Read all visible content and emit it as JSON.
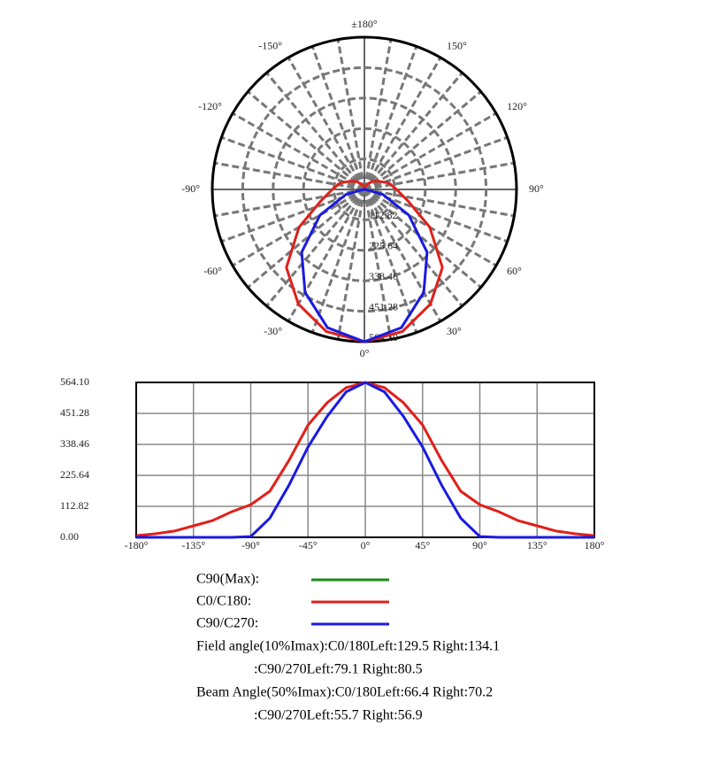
{
  "chart_data": [
    {
      "type": "polar",
      "theta": [
        -180,
        -165,
        -150,
        -135,
        -120,
        -105,
        -90,
        -75,
        -60,
        -45,
        -30,
        -15,
        0,
        15,
        30,
        45,
        60,
        75,
        90,
        105,
        120,
        135,
        150,
        165,
        180
      ],
      "series": [
        {
          "color": "#e0201a",
          "values": [
            6,
            13,
            23,
            42,
            61,
            93,
            119,
            168,
            280,
            409,
            490,
            545,
            564,
            545,
            490,
            409,
            280,
            168,
            119,
            93,
            61,
            42,
            23,
            13,
            6
          ]
        },
        {
          "color": "#1a1ae0",
          "values": [
            0,
            0,
            0,
            0,
            0,
            0,
            3,
            70,
            190,
            329,
            440,
            530,
            564,
            530,
            440,
            329,
            190,
            70,
            3,
            0,
            0,
            0,
            0,
            0,
            0
          ]
        }
      ],
      "rlim": [
        0,
        564.1
      ],
      "rticks": [
        112.82,
        225.64,
        338.46,
        451.28,
        {
          "value": 564.1,
          "label": "564.10"
        }
      ],
      "thetaticks": [
        {
          "value": 180,
          "label": "±180°"
        },
        {
          "value": 150,
          "label": "150°"
        },
        {
          "value": -150,
          "label": "-150°"
        },
        {
          "value": 120,
          "label": "120°"
        },
        {
          "value": -120,
          "label": "-120°"
        },
        {
          "value": 90,
          "label": "90°"
        },
        {
          "value": -90,
          "label": "-90°"
        },
        {
          "value": 60,
          "label": "60°"
        },
        {
          "value": -60,
          "label": "-60°"
        },
        {
          "value": 30,
          "label": "30°"
        },
        {
          "value": -30,
          "label": "-30°"
        },
        {
          "value": 0,
          "label": "0°"
        }
      ],
      "grid_step": 10
    },
    {
      "type": "line",
      "x": [
        -180,
        -165,
        -150,
        -135,
        -120,
        -105,
        -90,
        -75,
        -60,
        -45,
        -30,
        -15,
        0,
        15,
        30,
        45,
        60,
        75,
        90,
        105,
        120,
        135,
        150,
        165,
        180
      ],
      "series": [
        {
          "name": "C90(Max):",
          "color": "#1a8a1a",
          "values": [
            null,
            null,
            null,
            null,
            null,
            null,
            null,
            null,
            null,
            null,
            null,
            null,
            null,
            null,
            null,
            null,
            null,
            null,
            null,
            null,
            null,
            null,
            null,
            null,
            null
          ]
        },
        {
          "name": "C0/C180:",
          "color": "#e0201a",
          "values": [
            6,
            13,
            23,
            42,
            61,
            93,
            119,
            168,
            280,
            409,
            490,
            545,
            564,
            545,
            490,
            409,
            280,
            168,
            119,
            93,
            61,
            42,
            23,
            13,
            6
          ]
        },
        {
          "name": "C90/C270:",
          "color": "#1a1ae0",
          "values": [
            0,
            0,
            0,
            0,
            0,
            0,
            3,
            70,
            190,
            329,
            440,
            530,
            564,
            530,
            440,
            329,
            190,
            70,
            3,
            0,
            0,
            0,
            0,
            0,
            0
          ]
        }
      ],
      "xlim": [
        -180,
        180
      ],
      "xticks": [
        {
          "value": -180,
          "label": "-180°"
        },
        {
          "value": -135,
          "label": "-135°"
        },
        {
          "value": -90,
          "label": "-90°"
        },
        {
          "value": -45,
          "label": "-45°"
        },
        {
          "value": 0,
          "label": "0°"
        },
        {
          "value": 45,
          "label": "45°"
        },
        {
          "value": 90,
          "label": "90°"
        },
        {
          "value": 135,
          "label": "135°"
        },
        {
          "value": 180,
          "label": "180°"
        }
      ],
      "ylim": [
        0,
        564.1
      ],
      "yticks": [
        {
          "value": 0,
          "label": "0.00"
        },
        112.82,
        225.64,
        338.46,
        451.28,
        {
          "value": 564.1,
          "label": "564.10"
        }
      ],
      "grid": true
    }
  ],
  "notes": [
    "Field angle(10%Imax):C0/180Left:129.5 Right:134.1",
    ":C90/270Left:79.1 Right:80.5",
    "Beam Angle(50%Imax):C0/180Left:66.4 Right:70.2",
    ":C90/270Left:55.7 Right:56.9"
  ]
}
